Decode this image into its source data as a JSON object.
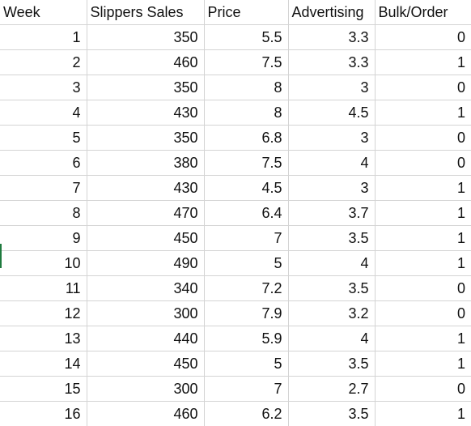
{
  "sheet": {
    "headers": [
      "Week",
      "Slippers Sales",
      "Price",
      "Advertising",
      "Bulk/Order"
    ],
    "rows": [
      [
        "1",
        "350",
        "5.5",
        "3.3",
        "0"
      ],
      [
        "2",
        "460",
        "7.5",
        "3.3",
        "1"
      ],
      [
        "3",
        "350",
        "8",
        "3",
        "0"
      ],
      [
        "4",
        "430",
        "8",
        "4.5",
        "1"
      ],
      [
        "5",
        "350",
        "6.8",
        "3",
        "0"
      ],
      [
        "6",
        "380",
        "7.5",
        "4",
        "0"
      ],
      [
        "7",
        "430",
        "4.5",
        "3",
        "1"
      ],
      [
        "8",
        "470",
        "6.4",
        "3.7",
        "1"
      ],
      [
        "9",
        "450",
        "7",
        "3.5",
        "1"
      ],
      [
        "10",
        "490",
        "5",
        "4",
        "1"
      ],
      [
        "11",
        "340",
        "7.2",
        "3.5",
        "0"
      ],
      [
        "12",
        "300",
        "7.9",
        "3.2",
        "0"
      ],
      [
        "13",
        "440",
        "5.9",
        "4",
        "1"
      ],
      [
        "14",
        "450",
        "5",
        "3.5",
        "1"
      ],
      [
        "15",
        "300",
        "7",
        "2.7",
        "0"
      ],
      [
        "16",
        "460",
        "6.2",
        "3.5",
        "1"
      ]
    ]
  },
  "colors": {
    "gridline": "#d4d4d4",
    "selection_marker": "#1f7a3e"
  }
}
